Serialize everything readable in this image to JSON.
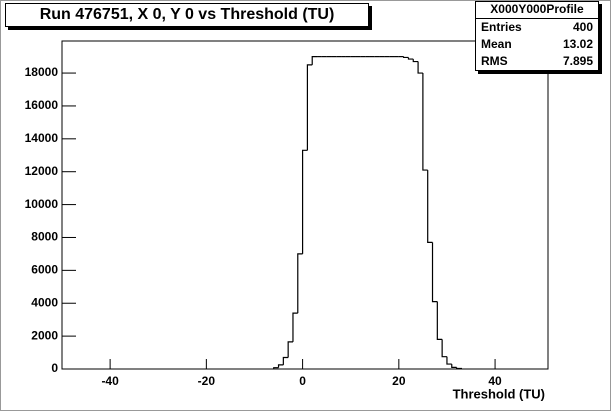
{
  "chart_data": {
    "type": "histogram",
    "title": "Run 476751, X 0, Y 0 vs Threshold (TU)",
    "x_label": "Threshold (TU)",
    "bins": [
      -6,
      -5,
      -4,
      -3,
      -2,
      -1,
      0,
      1,
      2,
      3,
      4,
      5,
      6,
      7,
      8,
      9,
      10,
      11,
      12,
      13,
      14,
      15,
      16,
      17,
      18,
      19,
      20,
      21,
      22,
      23,
      24,
      25,
      26,
      27,
      28,
      29,
      30,
      31,
      32,
      33
    ],
    "counts": [
      80,
      250,
      700,
      1650,
      3400,
      7000,
      13300,
      18500,
      19000,
      19000,
      19000,
      19000,
      19000,
      19000,
      19000,
      19000,
      19000,
      19000,
      19000,
      19000,
      19000,
      19000,
      19000,
      19000,
      19000,
      19000,
      19000,
      18950,
      18850,
      18700,
      18000,
      12100,
      7700,
      4100,
      1800,
      750,
      300,
      100,
      30
    ],
    "color": "#000000",
    "xlim": [
      -50,
      51
    ],
    "xticks": [
      -40,
      -20,
      0,
      20,
      40
    ],
    "ylim": [
      0,
      19950
    ],
    "yticks": [
      0,
      2000,
      4000,
      6000,
      8000,
      10000,
      12000,
      14000,
      16000,
      18000
    ],
    "stats": {
      "name": "X000Y000Profile",
      "rows": [
        {
          "label": "Entries",
          "value": 400
        },
        {
          "label": "Mean",
          "value": 13.02
        },
        {
          "label": "RMS",
          "value": 7.895
        }
      ]
    }
  }
}
